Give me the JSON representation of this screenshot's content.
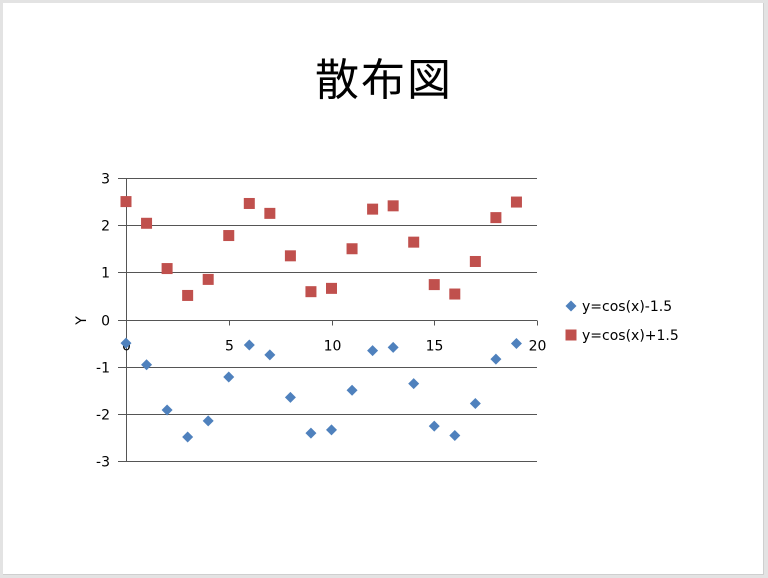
{
  "slide": {
    "title": "散布図"
  },
  "chart_data": {
    "type": "scatter",
    "title": "散布図",
    "xlabel": "",
    "ylabel": "Y",
    "xlim": [
      0,
      20
    ],
    "ylim": [
      -3,
      3
    ],
    "x_ticks": [
      "0",
      "5",
      "10",
      "15",
      "20"
    ],
    "y_ticks": [
      "3",
      "2",
      "1",
      "0",
      "-1",
      "-2",
      "-3"
    ],
    "grid": "horizontal major gridlines",
    "legend_position": "right",
    "x": [
      0,
      1,
      2,
      3,
      4,
      5,
      6,
      7,
      8,
      9,
      10,
      11,
      12,
      13,
      14,
      15,
      16,
      17,
      18,
      19
    ],
    "series": [
      {
        "name": "y=cos(x)-1.5",
        "marker": "diamond",
        "color": "#4f81bd",
        "values": [
          -0.5,
          -0.96,
          -1.92,
          -2.49,
          -2.15,
          -1.22,
          -0.54,
          -0.75,
          -1.65,
          -2.41,
          -2.34,
          -1.5,
          -0.66,
          -0.59,
          -1.36,
          -2.26,
          -2.46,
          -1.78,
          -0.84,
          -0.51
        ]
      },
      {
        "name": "y=cos(x)+1.5",
        "marker": "square",
        "color": "#c0504d",
        "values": [
          2.5,
          2.04,
          1.08,
          0.51,
          0.85,
          1.78,
          2.46,
          2.25,
          1.35,
          0.59,
          0.66,
          1.5,
          2.34,
          2.41,
          1.64,
          0.74,
          0.54,
          1.23,
          2.16,
          2.49
        ]
      }
    ]
  }
}
